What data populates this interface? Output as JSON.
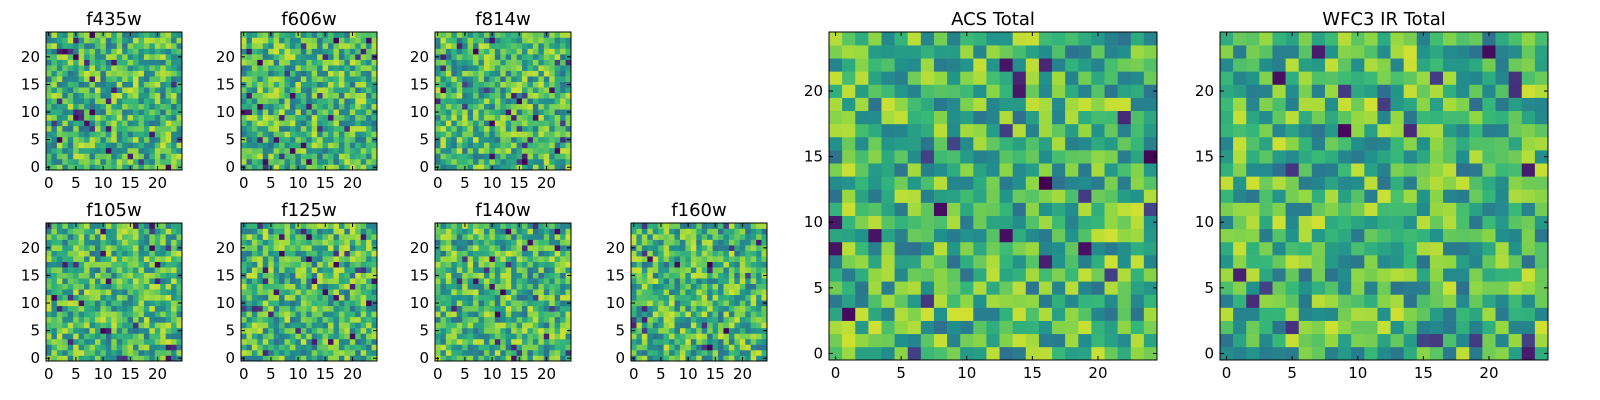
{
  "chart_data": [
    {
      "type": "heatmap",
      "title": "f435w",
      "seed": 11,
      "xlim": [
        0,
        24
      ],
      "ylim": [
        0,
        24
      ],
      "xticks": [
        "0",
        "5",
        "10",
        "15",
        "20"
      ],
      "yticks": [
        "0",
        "5",
        "10",
        "15",
        "20"
      ],
      "grid_size": [
        25,
        25
      ],
      "colormap": "viridis"
    },
    {
      "type": "heatmap",
      "title": "f606w",
      "seed": 23,
      "xlim": [
        0,
        24
      ],
      "ylim": [
        0,
        24
      ],
      "xticks": [
        "0",
        "5",
        "10",
        "15",
        "20"
      ],
      "yticks": [
        "0",
        "5",
        "10",
        "15",
        "20"
      ],
      "grid_size": [
        25,
        25
      ],
      "colormap": "viridis"
    },
    {
      "type": "heatmap",
      "title": "f814w",
      "seed": 37,
      "xlim": [
        0,
        24
      ],
      "ylim": [
        0,
        24
      ],
      "xticks": [
        "0",
        "5",
        "10",
        "15",
        "20"
      ],
      "yticks": [
        "0",
        "5",
        "10",
        "15",
        "20"
      ],
      "grid_size": [
        25,
        25
      ],
      "colormap": "viridis"
    },
    {
      "type": "heatmap",
      "title": "f105w",
      "seed": 41,
      "xlim": [
        0,
        24
      ],
      "ylim": [
        0,
        24
      ],
      "xticks": [
        "0",
        "5",
        "10",
        "15",
        "20"
      ],
      "yticks": [
        "0",
        "5",
        "10",
        "15",
        "20"
      ],
      "grid_size": [
        25,
        25
      ],
      "colormap": "viridis"
    },
    {
      "type": "heatmap",
      "title": "f125w",
      "seed": 53,
      "xlim": [
        0,
        24
      ],
      "ylim": [
        0,
        24
      ],
      "xticks": [
        "0",
        "5",
        "10",
        "15",
        "20"
      ],
      "yticks": [
        "0",
        "5",
        "10",
        "15",
        "20"
      ],
      "grid_size": [
        25,
        25
      ],
      "colormap": "viridis"
    },
    {
      "type": "heatmap",
      "title": "f140w",
      "seed": 67,
      "xlim": [
        0,
        24
      ],
      "ylim": [
        0,
        24
      ],
      "xticks": [
        "0",
        "5",
        "10",
        "15",
        "20"
      ],
      "yticks": [
        "0",
        "5",
        "10",
        "15",
        "20"
      ],
      "grid_size": [
        25,
        25
      ],
      "colormap": "viridis"
    },
    {
      "type": "heatmap",
      "title": "f160w",
      "seed": 79,
      "xlim": [
        0,
        24
      ],
      "ylim": [
        0,
        24
      ],
      "xticks": [
        "0",
        "5",
        "10",
        "15",
        "20"
      ],
      "yticks": [
        "0",
        "5",
        "10",
        "15",
        "20"
      ],
      "grid_size": [
        25,
        25
      ],
      "colormap": "viridis"
    },
    {
      "type": "heatmap",
      "title": "ACS Total",
      "seed": 97,
      "xlim": [
        0,
        24
      ],
      "ylim": [
        0,
        24
      ],
      "xticks": [
        "0",
        "5",
        "10",
        "15",
        "20"
      ],
      "yticks": [
        "0",
        "5",
        "10",
        "15",
        "20"
      ],
      "grid_size": [
        25,
        25
      ],
      "colormap": "viridis"
    },
    {
      "type": "heatmap",
      "title": "WFC3 IR Total",
      "seed": 131,
      "xlim": [
        0,
        24
      ],
      "ylim": [
        0,
        24
      ],
      "xticks": [
        "0",
        "5",
        "10",
        "15",
        "20"
      ],
      "yticks": [
        "0",
        "5",
        "10",
        "15",
        "20"
      ],
      "grid_size": [
        25,
        25
      ],
      "colormap": "viridis"
    }
  ]
}
